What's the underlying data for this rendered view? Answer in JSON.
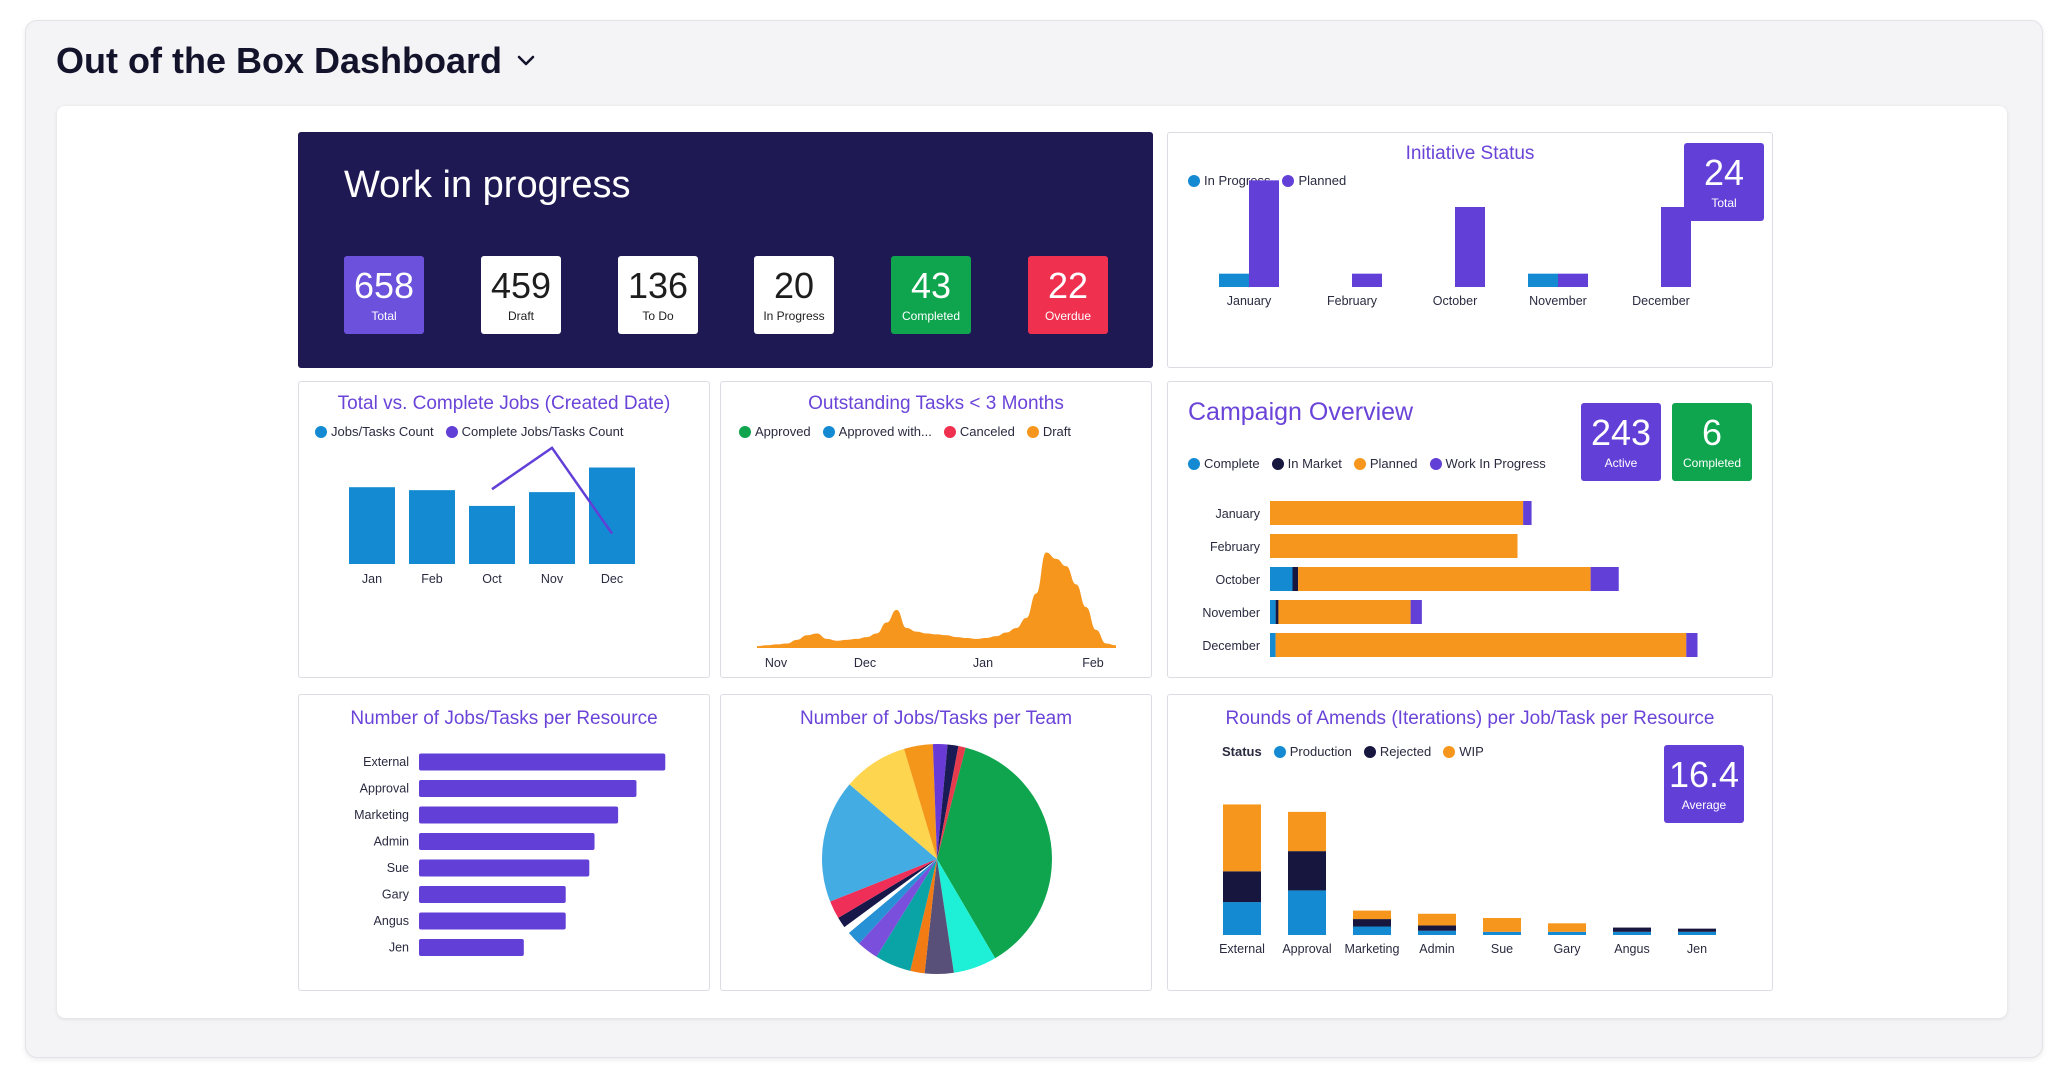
{
  "dashboard": {
    "title": "Out of the Box Dashboard"
  },
  "colors": {
    "navy": "#1e1953",
    "purple": "#6240d8",
    "blue": "#138ad1",
    "green": "#0ea54e",
    "red": "#f0304f",
    "orange": "#f7961d",
    "dark": "#16163e"
  },
  "wip": {
    "title": "Work in progress",
    "kpis": [
      {
        "value": "658",
        "label": "Total"
      },
      {
        "value": "459",
        "label": "Draft"
      },
      {
        "value": "136",
        "label": "To Do"
      },
      {
        "value": "20",
        "label": "In Progress"
      },
      {
        "value": "43",
        "label": "Completed"
      },
      {
        "value": "22",
        "label": "Overdue"
      }
    ]
  },
  "initiative": {
    "title": "Initiative Status",
    "legend": [
      "In Progress",
      "Planned"
    ],
    "kpi": {
      "value": "24",
      "label": "Total"
    }
  },
  "total_complete": {
    "title": "Total vs. Complete Jobs (Created Date)",
    "legend": [
      "Jobs/Tasks Count",
      "Complete Jobs/Tasks Count"
    ]
  },
  "outstanding": {
    "title": "Outstanding Tasks < 3 Months",
    "legend": [
      "Approved",
      "Approved with...",
      "Canceled",
      "Draft"
    ]
  },
  "campaign": {
    "title": "Campaign Overview",
    "legend": [
      "Complete",
      "In Market",
      "Planned",
      "Work In Progress"
    ],
    "kpis": [
      {
        "value": "243",
        "label": "Active"
      },
      {
        "value": "6",
        "label": "Completed"
      }
    ]
  },
  "per_resource": {
    "title": "Number of Jobs/Tasks per Resource"
  },
  "per_team": {
    "title": "Number of Jobs/Tasks per Team"
  },
  "amends": {
    "title": "Rounds of Amends (Iterations) per Job/Task per Resource",
    "legend_title": "Status",
    "legend": [
      "Production",
      "Rejected",
      "WIP"
    ],
    "kpi": {
      "value": "16.4",
      "label": "Average"
    }
  },
  "chart_data": [
    {
      "id": "initiative",
      "type": "bar",
      "categories": [
        "January",
        "February",
        "October",
        "November",
        "December"
      ],
      "series": [
        {
          "name": "In Progress",
          "values": [
            1,
            0,
            0,
            1,
            0
          ]
        },
        {
          "name": "Planned",
          "values": [
            8,
            1,
            6,
            1,
            6
          ]
        }
      ],
      "ylim": [
        0,
        9
      ]
    },
    {
      "id": "total_complete",
      "type": "bar",
      "categories": [
        "Jan",
        "Feb",
        "Oct",
        "Nov",
        "Dec"
      ],
      "series": [
        {
          "name": "Jobs/Tasks Count",
          "values": [
            78,
            75,
            59,
            73,
            98
          ]
        },
        {
          "name": "Complete Jobs/Tasks Count",
          "values": [
            null,
            null,
            76,
            118,
            31
          ]
        }
      ],
      "ylim": [
        0,
        130
      ]
    },
    {
      "id": "outstanding",
      "type": "area",
      "x_ticks": [
        "Nov",
        "Dec",
        "Jan",
        "Feb"
      ],
      "series": [
        {
          "name": "Draft",
          "values": [
            2,
            3,
            4,
            5,
            9,
            14,
            16,
            10,
            8,
            9,
            10,
            12,
            16,
            28,
            42,
            22,
            18,
            16,
            15,
            14,
            12,
            11,
            10,
            11,
            13,
            17,
            22,
            33,
            60,
            105,
            98,
            90,
            70,
            45,
            20,
            5,
            3
          ]
        }
      ],
      "ylim": [
        0,
        110
      ]
    },
    {
      "id": "campaign",
      "type": "bar",
      "orientation": "horizontal",
      "categories": [
        "January",
        "February",
        "October",
        "November",
        "December"
      ],
      "series": [
        {
          "name": "Complete",
          "values": [
            0,
            0,
            8,
            2,
            2
          ]
        },
        {
          "name": "In Market",
          "values": [
            0,
            0,
            2,
            1,
            0
          ]
        },
        {
          "name": "Planned",
          "values": [
            90,
            88,
            104,
            47,
            146
          ]
        },
        {
          "name": "Work In Progress",
          "values": [
            3,
            0,
            10,
            4,
            4
          ]
        }
      ],
      "xlim": [
        0,
        160
      ]
    },
    {
      "id": "per_resource",
      "type": "bar",
      "orientation": "horizontal",
      "categories": [
        "External",
        "Approval",
        "Marketing",
        "Admin",
        "Sue",
        "Gary",
        "Angus",
        "Jen"
      ],
      "values": [
        94,
        83,
        76,
        67,
        65,
        56,
        56,
        40
      ],
      "xlim": [
        0,
        100
      ]
    },
    {
      "id": "per_team",
      "type": "pie",
      "slices": [
        {
          "value": 37,
          "color": "#0ea54e"
        },
        {
          "value": 6,
          "color": "#1ef0d8"
        },
        {
          "value": 4,
          "color": "#585078"
        },
        {
          "value": 2,
          "color": "#f27b13"
        },
        {
          "value": 5,
          "color": "#0aa3a6"
        },
        {
          "value": 3,
          "color": "#7a4fdc"
        },
        {
          "value": 2,
          "color": "#2691d4"
        },
        {
          "value": 1,
          "color": "#ffffff"
        },
        {
          "value": 1.5,
          "color": "#17174a"
        },
        {
          "value": 2.5,
          "color": "#ef2f58"
        },
        {
          "value": 17,
          "color": "#43ace3"
        },
        {
          "value": 9,
          "color": "#fdd54e"
        },
        {
          "value": 4,
          "color": "#f3961a"
        },
        {
          "value": 2,
          "color": "#6a3ad6"
        },
        {
          "value": 1.5,
          "color": "#1a1a55"
        },
        {
          "value": 1,
          "color": "#e63a4d"
        }
      ]
    },
    {
      "id": "amends",
      "type": "bar",
      "stacked": true,
      "categories": [
        "External",
        "Approval",
        "Marketing",
        "Admin",
        "Sue",
        "Gary",
        "Angus",
        "Jen"
      ],
      "series": [
        {
          "name": "Production",
          "values": [
            3.1,
            4.2,
            0.8,
            0.4,
            0.3,
            0.3,
            0.3,
            0.3
          ]
        },
        {
          "name": "Rejected",
          "values": [
            2.9,
            3.7,
            0.7,
            0.5,
            0.0,
            0.0,
            0.4,
            0.3
          ]
        },
        {
          "name": "WIP",
          "values": [
            6.3,
            3.7,
            0.8,
            1.1,
            1.3,
            0.8,
            0.0,
            0.0
          ]
        }
      ],
      "ylim": [
        0,
        13
      ]
    }
  ]
}
